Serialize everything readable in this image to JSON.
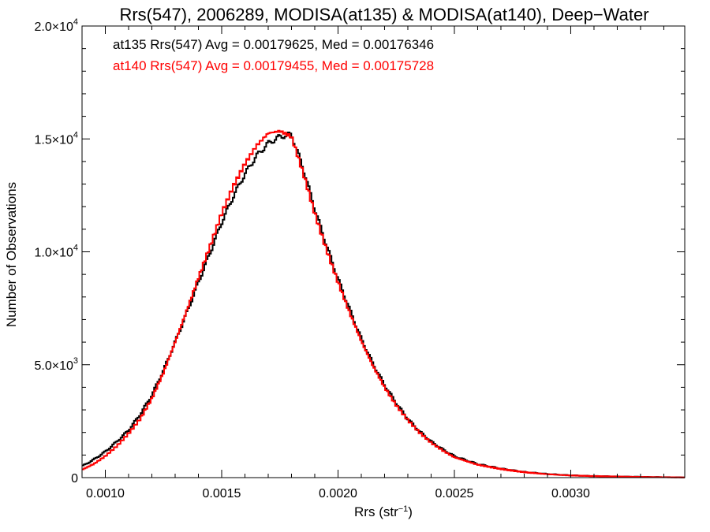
{
  "chart_data": {
    "type": "line",
    "title": "Rrs(547), 2006289, MODISA(at135) & MODISA(at140), Deep−Water",
    "xlabel": "Rrs (str",
    "xlabel_sup": "−1",
    "xlabel_end": ")",
    "ylabel": "Number of Observations",
    "xlim": [
      0.0009,
      0.00349
    ],
    "ylim": [
      0,
      20000
    ],
    "x_ticks": [
      {
        "value": 0.001,
        "label": "0.0010"
      },
      {
        "value": 0.0015,
        "label": "0.0015"
      },
      {
        "value": 0.002,
        "label": "0.0020"
      },
      {
        "value": 0.0025,
        "label": "0.0025"
      },
      {
        "value": 0.003,
        "label": "0.0030"
      }
    ],
    "y_ticks": [
      {
        "value": 0,
        "mantissa": "0",
        "exp": ""
      },
      {
        "value": 5000,
        "mantissa": "5.0×10",
        "exp": "3"
      },
      {
        "value": 10000,
        "mantissa": "1.0×10",
        "exp": "4"
      },
      {
        "value": 15000,
        "mantissa": "1.5×10",
        "exp": "4"
      },
      {
        "value": 20000,
        "mantissa": "2.0×10",
        "exp": "4"
      }
    ],
    "annotations": [
      {
        "text": "at135 Rrs(547) Avg = 0.00179625, Med = 0.00176346",
        "color": "#000000"
      },
      {
        "text": "at140 Rrs(547) Avg = 0.00179455, Med = 0.00175728",
        "color": "#ff0000"
      }
    ],
    "series": [
      {
        "color": "#000000",
        "x": [
          0.0009,
          0.00095,
          0.001,
          0.00105,
          0.0011,
          0.00115,
          0.0012,
          0.00125,
          0.0013,
          0.00135,
          0.0014,
          0.00145,
          0.0015,
          0.00155,
          0.0016,
          0.00165,
          0.0017,
          0.00175,
          0.0018,
          0.00185,
          0.0019,
          0.00195,
          0.002,
          0.00205,
          0.0021,
          0.00215,
          0.0022,
          0.00225,
          0.0023,
          0.00235,
          0.0024,
          0.00245,
          0.0025,
          0.0026,
          0.0027,
          0.0028,
          0.0029,
          0.003,
          0.0031,
          0.0032,
          0.0033,
          0.0034,
          0.00349
        ],
        "y": [
          500,
          800,
          1150,
          1600,
          2100,
          2800,
          3650,
          4750,
          6000,
          7300,
          8650,
          9950,
          11300,
          12450,
          13450,
          14250,
          14800,
          15100,
          15200,
          13700,
          11900,
          10300,
          8800,
          7450,
          6150,
          5050,
          4100,
          3300,
          2600,
          2050,
          1600,
          1250,
          950,
          600,
          400,
          250,
          160,
          100,
          70,
          50,
          35,
          20,
          10
        ]
      },
      {
        "color": "#ff0000",
        "x": [
          0.0009,
          0.00095,
          0.001,
          0.00105,
          0.0011,
          0.00115,
          0.0012,
          0.00125,
          0.0013,
          0.00135,
          0.0014,
          0.00145,
          0.0015,
          0.00155,
          0.0016,
          0.00165,
          0.0017,
          0.00175,
          0.0018,
          0.00185,
          0.0019,
          0.00195,
          0.002,
          0.00205,
          0.0021,
          0.00215,
          0.0022,
          0.00225,
          0.0023,
          0.00235,
          0.0024,
          0.00245,
          0.0025,
          0.0026,
          0.0027,
          0.0028,
          0.0029,
          0.003,
          0.0031,
          0.0032,
          0.0033,
          0.0034,
          0.00349
        ],
        "y": [
          350,
          600,
          950,
          1400,
          1950,
          2600,
          3500,
          4650,
          6000,
          7400,
          8850,
          10250,
          11700,
          12900,
          13900,
          14700,
          15250,
          15350,
          15100,
          13500,
          11700,
          10100,
          8650,
          7300,
          6050,
          4950,
          4000,
          3200,
          2550,
          2000,
          1550,
          1200,
          900,
          570,
          380,
          240,
          150,
          95,
          65,
          45,
          30,
          18,
          8
        ]
      }
    ]
  }
}
